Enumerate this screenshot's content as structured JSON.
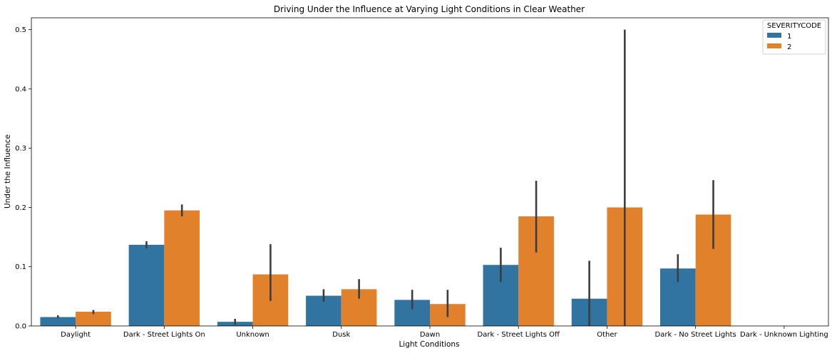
{
  "chart_data": {
    "type": "bar",
    "title": "Driving Under the Influence at Varying Light Conditions in Clear Weather",
    "xlabel": "Light Conditions",
    "ylabel": "Under the Influence",
    "ylim": [
      0,
      0.52
    ],
    "yticks": [
      "0.0",
      "0.1",
      "0.2",
      "0.3",
      "0.4",
      "0.5"
    ],
    "categories": [
      "Daylight",
      "Dark - Street Lights On",
      "Unknown",
      "Dusk",
      "Dawn",
      "Dark - Street Lights Off",
      "Other",
      "Dark - No Street Lights",
      "Dark - Unknown Lighting"
    ],
    "legend": {
      "title": "SEVERITYCODE",
      "placement": "top-right"
    },
    "grid": false,
    "series": [
      {
        "name": "1",
        "color": "#3274a1",
        "values": [
          0.015,
          0.137,
          0.007,
          0.051,
          0.044,
          0.103,
          0.046,
          0.097,
          0
        ],
        "err_low": [
          0.013,
          0.131,
          0.002,
          0.041,
          0.028,
          0.074,
          0.0,
          0.074,
          null
        ],
        "err_high": [
          0.018,
          0.143,
          0.012,
          0.062,
          0.061,
          0.132,
          0.11,
          0.121,
          null
        ]
      },
      {
        "name": "2",
        "color": "#e1812c",
        "values": [
          0.024,
          0.195,
          0.087,
          0.062,
          0.037,
          0.185,
          0.2,
          0.188,
          0
        ],
        "err_low": [
          0.02,
          0.185,
          0.042,
          0.046,
          0.015,
          0.124,
          0.0,
          0.13,
          null
        ],
        "err_high": [
          0.027,
          0.205,
          0.138,
          0.079,
          0.061,
          0.245,
          0.5,
          0.246,
          null
        ]
      }
    ]
  }
}
